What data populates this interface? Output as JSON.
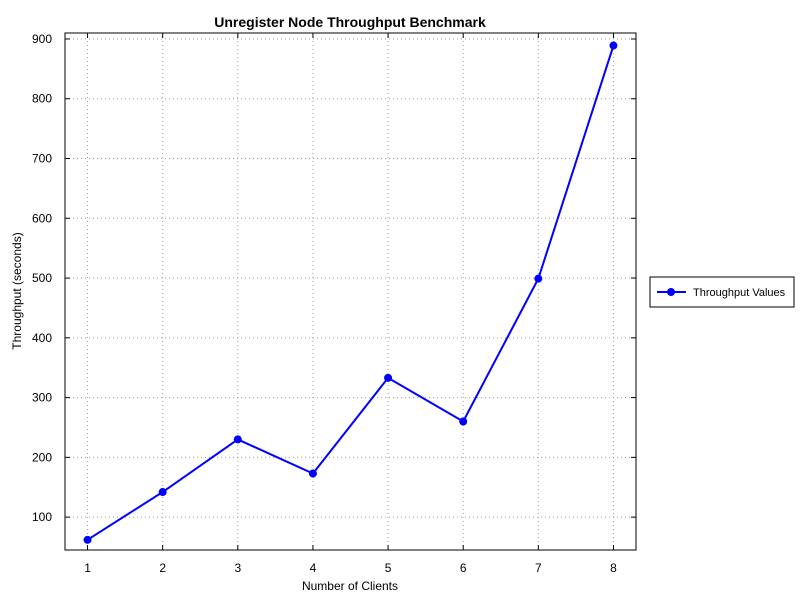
{
  "chart_data": {
    "type": "line",
    "title": "Unregister Node Throughput Benchmark",
    "xlabel": "Number of Clients",
    "ylabel": "Throughput (seconds)",
    "x": [
      1,
      2,
      3,
      4,
      5,
      6,
      7,
      8
    ],
    "xlim": [
      0.7,
      8.3
    ],
    "ylim": [
      45,
      910
    ],
    "xticks": [
      1,
      2,
      3,
      4,
      5,
      6,
      7,
      8
    ],
    "yticks": [
      100,
      200,
      300,
      400,
      500,
      600,
      700,
      800,
      900
    ],
    "grid": true,
    "grid_style": "dotted",
    "legend_position": "right",
    "series": [
      {
        "name": "Throughput Values",
        "color": "#0000ff",
        "marker": "circle",
        "values": [
          62,
          142,
          230,
          173,
          333,
          260,
          499,
          889
        ]
      }
    ]
  }
}
